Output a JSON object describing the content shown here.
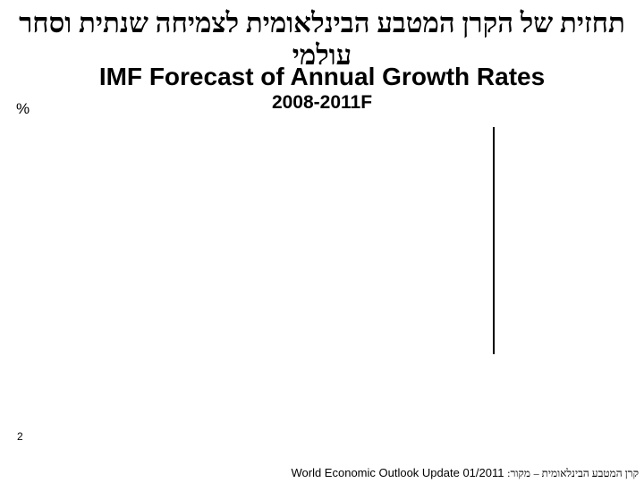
{
  "title_hebrew": "תחזית של הקרן המטבע הבינלאומית לצמיחה שנתית וסחר עולמי",
  "title_english": "IMF Forecast of Annual Growth Rates",
  "chart_data": {
    "type": "bar",
    "subtitle": "2008-2011F",
    "ylabel": "%",
    "categories": [],
    "series": []
  },
  "page_number": "2",
  "source": {
    "prefix_hebrew": "מקור:",
    "org_hebrew": "קרן המטבע הבינלאומית –",
    "publication": "World Economic Outlook Update 01/2011"
  }
}
